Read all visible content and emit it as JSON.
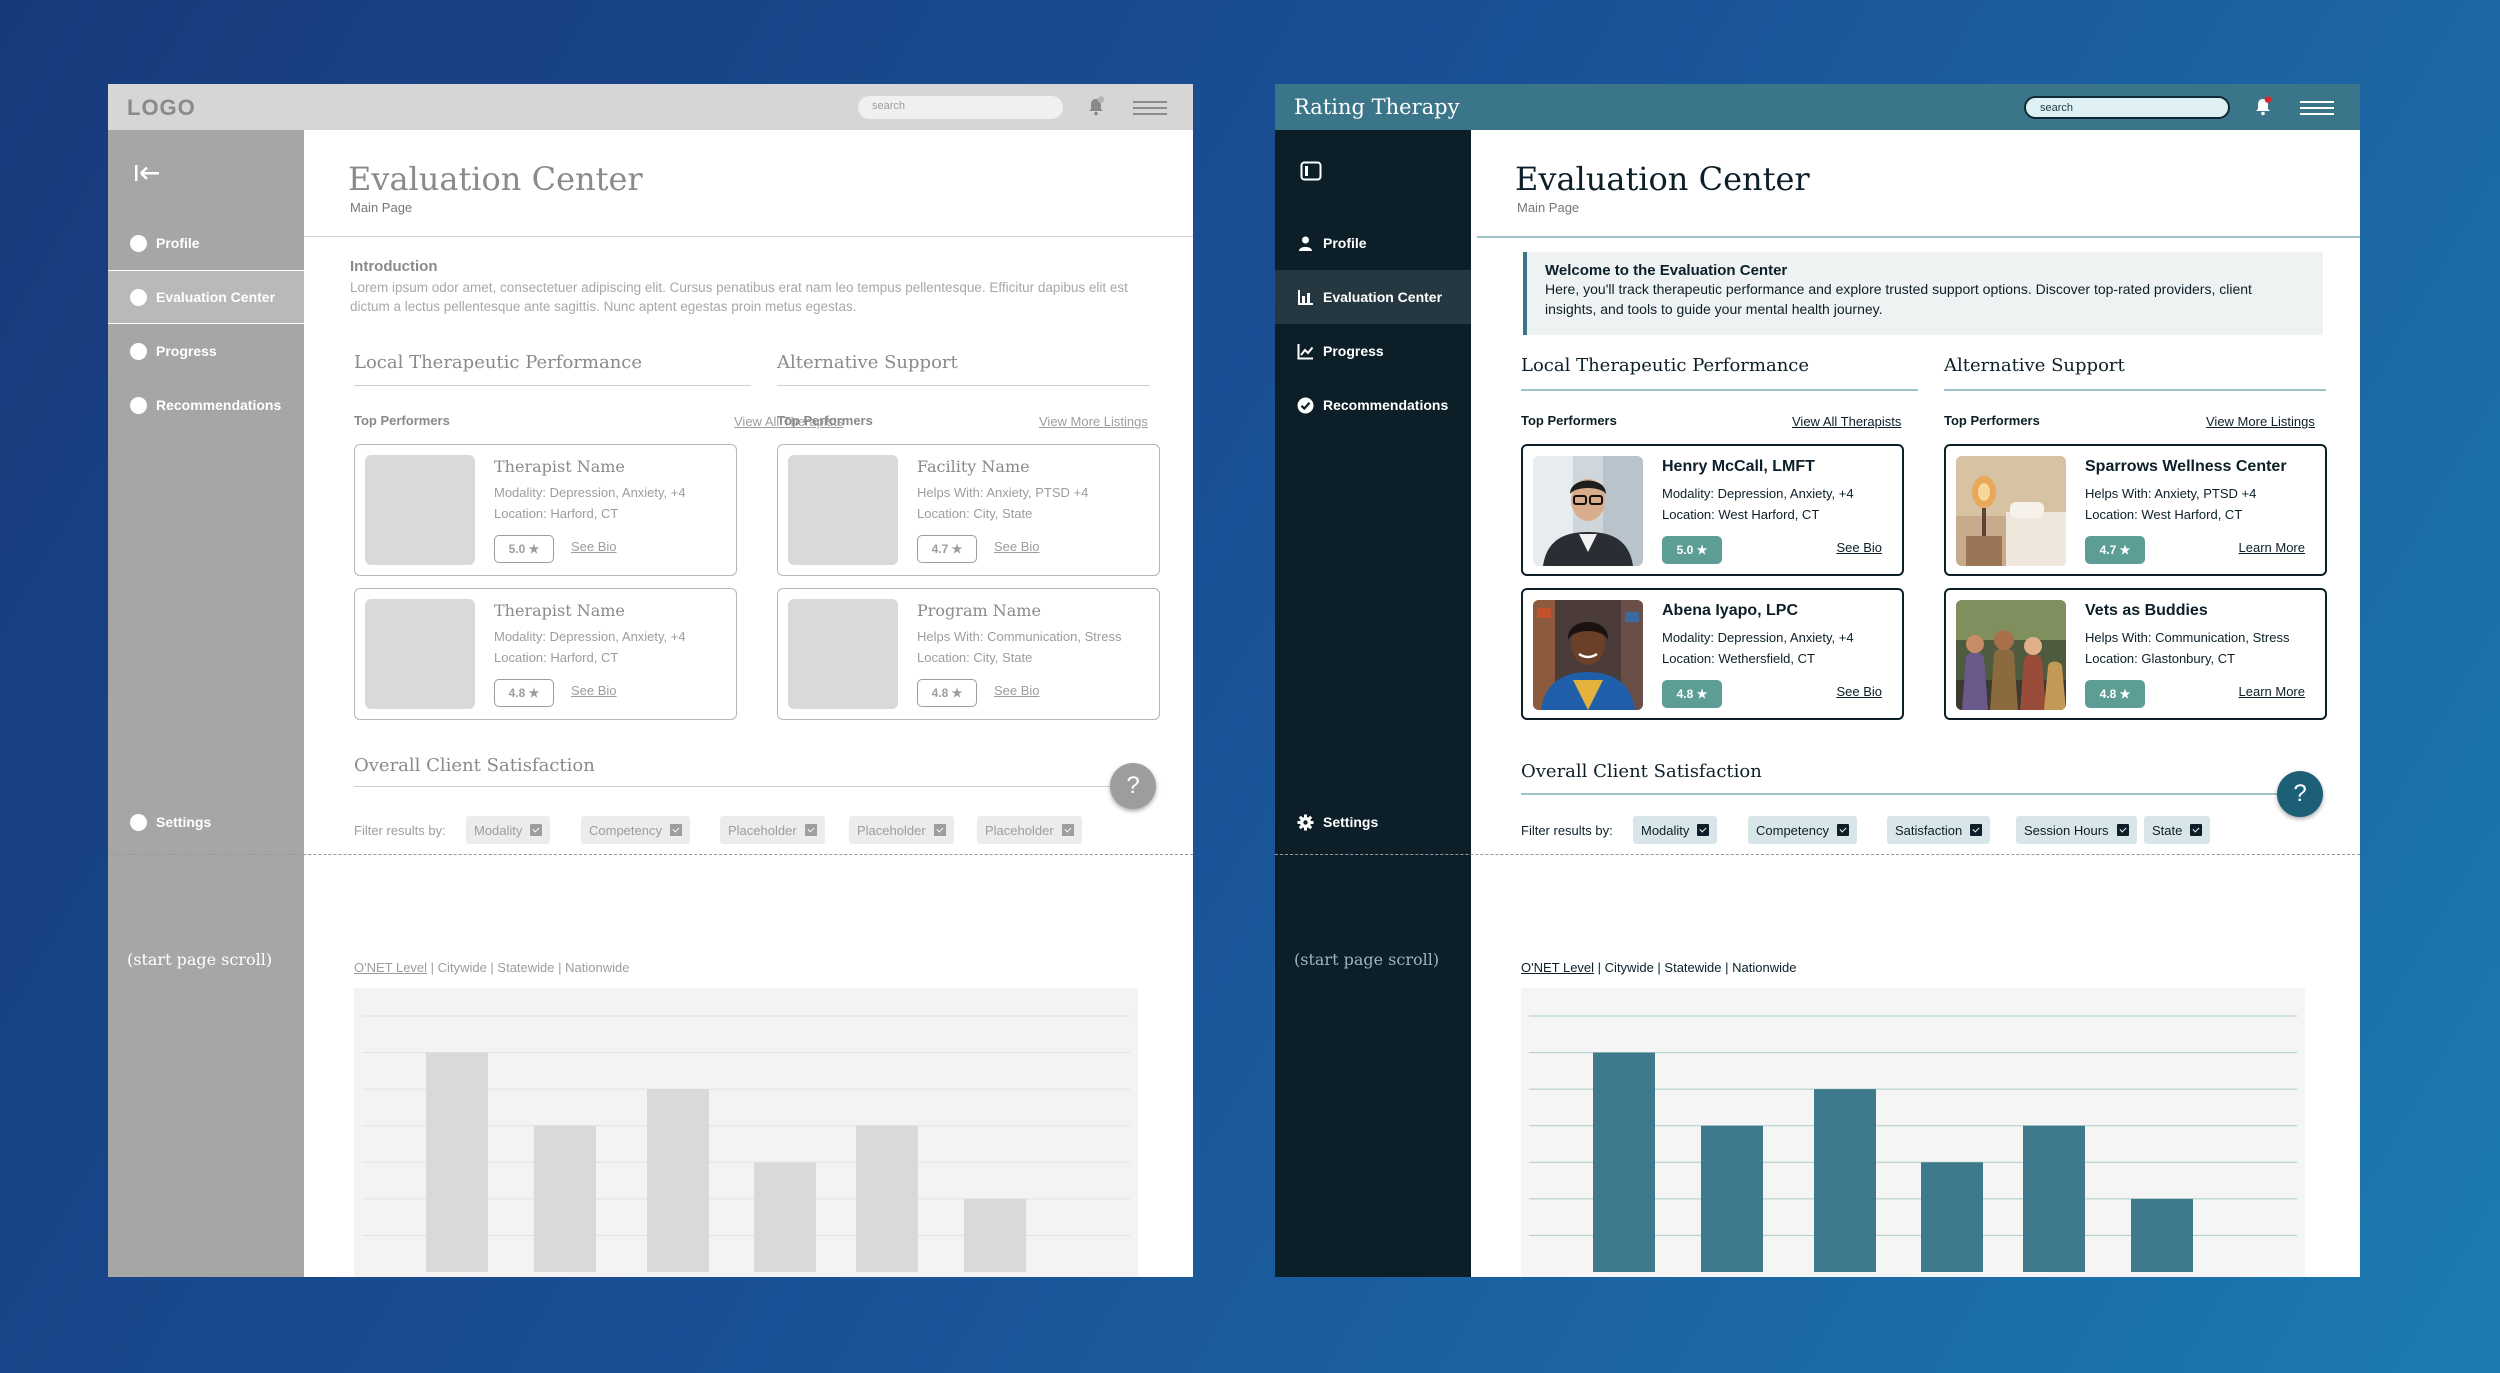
{
  "panels": [
    {
      "id": "wire",
      "brand": "LOGO",
      "search_placeholder": "search",
      "nav": [
        "Profile",
        "Evaluation Center",
        "Progress",
        "Recommendations"
      ],
      "settings": "Settings",
      "scroll_note": "(start page scroll)",
      "title": "Evaluation Center",
      "subtitle": "Main Page",
      "intro": {
        "heading": "Introduction",
        "text": "Lorem ipsum odor amet, consectetuer adipiscing elit. Cursus penatibus erat nam leo tempus pellentesque. Efficitur dapibus elit est dictum a lectus pellentesque ante sagittis. Nunc aptent egestas proin metus egestas."
      },
      "local": {
        "title": "Local Therapeutic Performance",
        "label": "Top Performers",
        "link": "View All Therapists",
        "cards": [
          {
            "name": "Therapist Name",
            "line1": "Modality: Depression, Anxiety, +4",
            "line2": "Location: Harford, CT",
            "rating": "5.0 ★",
            "link": "See Bio"
          },
          {
            "name": "Therapist Name",
            "line1": "Modality: Depression, Anxiety, +4",
            "line2": "Location: Harford, CT",
            "rating": "4.8 ★",
            "link": "See Bio"
          }
        ]
      },
      "alt": {
        "title": "Alternative Support",
        "label": "Top Performers",
        "link": "View More Listings",
        "cards": [
          {
            "name": "Facility Name",
            "line1": "Helps With: Anxiety, PTSD +4",
            "line2": "Location: City, State",
            "rating": "4.7 ★",
            "link": "See Bio"
          },
          {
            "name": "Program Name",
            "line1": "Helps With: Communication, Stress",
            "line2": "Location: City, State",
            "rating": "4.8 ★",
            "link": "See Bio"
          }
        ]
      },
      "satisfaction": {
        "title": "Overall Client Satisfaction",
        "filter_label": "Filter results by:",
        "filters": [
          "Modality",
          "Competency",
          "Placeholder",
          "Placeholder",
          "Placeholder"
        ],
        "levels": [
          "O'NET Level",
          "Citywide",
          "Statewide",
          "Nationwide"
        ],
        "help": "?"
      }
    },
    {
      "id": "final",
      "brand": "Rating Therapy",
      "search_placeholder": "search",
      "nav": [
        "Profile",
        "Evaluation Center",
        "Progress",
        "Recommendations"
      ],
      "settings": "Settings",
      "scroll_note": "(start page scroll)",
      "title": "Evaluation Center",
      "subtitle": "Main Page",
      "welcome": {
        "heading": "Welcome to the Evaluation Center",
        "text": "Here, you'll track therapeutic performance and explore trusted support options. Discover top-rated providers, client insights, and tools to guide your mental health journey."
      },
      "local": {
        "title": "Local Therapeutic Performance",
        "label": "Top Performers",
        "link": "View All Therapists",
        "cards": [
          {
            "name": "Henry McCall, LMFT",
            "line1": "Modality: Depression, Anxiety, +4",
            "line2": "Location: West Harford, CT",
            "rating": "5.0 ★",
            "link": "See Bio"
          },
          {
            "name": "Abena Iyapo, LPC",
            "line1": "Modality: Depression, Anxiety, +4",
            "line2": "Location: Wethersfield, CT",
            "rating": "4.8 ★",
            "link": "See Bio"
          }
        ]
      },
      "alt": {
        "title": "Alternative Support",
        "label": "Top Performers",
        "link": "View More Listings",
        "cards": [
          {
            "name": "Sparrows Wellness Center",
            "line1": "Helps With: Anxiety, PTSD +4",
            "line2": "Location: West Harford, CT",
            "rating": "4.7 ★",
            "link": "Learn More"
          },
          {
            "name": "Vets as Buddies",
            "line1": "Helps With: Communication, Stress",
            "line2": "Location: Glastonbury, CT",
            "rating": "4.8 ★",
            "link": "Learn More"
          }
        ]
      },
      "satisfaction": {
        "title": "Overall Client Satisfaction",
        "filter_label": "Filter results by:",
        "filters": [
          "Modality",
          "Competency",
          "Satisfaction",
          "Session Hours",
          "State"
        ],
        "levels": [
          "O'NET Level",
          "Citywide",
          "Statewide",
          "Nationwide"
        ],
        "help": "?"
      }
    }
  ],
  "colors": {
    "wire_bar": "#d9d9d9",
    "final_bar": "#3f7a8c",
    "final_grid": "#a9cfc6",
    "wire_grid": "#e2e2e2"
  },
  "chart_data": {
    "type": "bar",
    "values": [
      6,
      4,
      5,
      3,
      4,
      2
    ],
    "ylim": [
      0,
      7
    ],
    "grid": true
  }
}
